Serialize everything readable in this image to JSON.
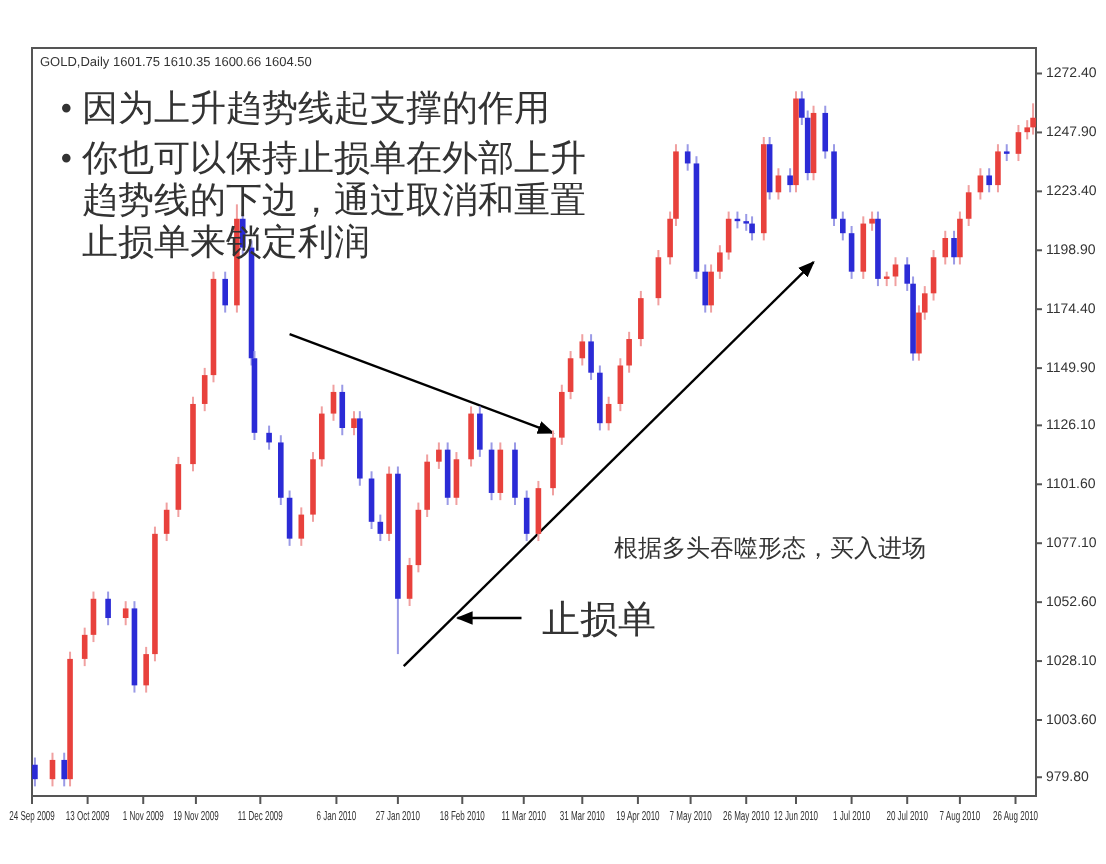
{
  "chart_data": {
    "type": "candlestick",
    "title": "GOLD,Daily  1601.75 1610.35 1600.66 1604.50",
    "x": [
      "2009-09-25",
      "2009-10-01",
      "2009-10-05",
      "2009-10-07",
      "2009-10-12",
      "2009-10-15",
      "2009-10-20",
      "2009-10-26",
      "2009-10-29",
      "2009-11-02",
      "2009-11-05",
      "2009-11-09",
      "2009-11-13",
      "2009-11-18",
      "2009-11-22",
      "2009-11-25",
      "2009-11-29",
      "2009-12-03",
      "2009-12-05",
      "2009-12-08",
      "2009-12-09",
      "2009-12-14",
      "2009-12-18",
      "2009-12-21",
      "2009-12-25",
      "2009-12-29",
      "2010-01-01",
      "2010-01-05",
      "2010-01-08",
      "2010-01-12",
      "2010-01-14",
      "2010-01-18",
      "2010-01-21",
      "2010-01-24",
      "2010-01-27",
      "2010-01-31",
      "2010-02-03",
      "2010-02-06",
      "2010-02-10",
      "2010-02-13",
      "2010-02-16",
      "2010-02-21",
      "2010-02-24",
      "2010-02-28",
      "2010-03-03",
      "2010-03-08",
      "2010-03-12",
      "2010-03-16",
      "2010-03-21",
      "2010-03-24",
      "2010-03-27",
      "2010-03-31",
      "2010-04-03",
      "2010-04-06",
      "2010-04-09",
      "2010-04-13",
      "2010-04-16",
      "2010-04-20",
      "2010-04-26",
      "2010-04-30",
      "2010-05-02",
      "2010-05-06",
      "2010-05-09",
      "2010-05-12",
      "2010-05-14",
      "2010-05-17",
      "2010-05-20",
      "2010-05-23",
      "2010-05-26",
      "2010-05-28",
      "2010-06-01",
      "2010-06-03",
      "2010-06-06",
      "2010-06-10",
      "2010-06-12",
      "2010-06-14",
      "2010-06-16",
      "2010-06-18",
      "2010-06-22",
      "2010-06-25",
      "2010-06-28",
      "2010-07-01",
      "2010-07-05",
      "2010-07-08",
      "2010-07-10",
      "2010-07-13",
      "2010-07-16",
      "2010-07-20",
      "2010-07-22",
      "2010-07-24",
      "2010-07-26",
      "2010-07-29",
      "2010-08-02",
      "2010-08-05",
      "2010-08-07",
      "2010-08-10",
      "2010-08-14",
      "2010-08-17",
      "2010-08-20",
      "2010-08-23",
      "2010-08-27",
      "2010-08-30",
      "2010-09-01"
    ],
    "ohlc": [
      [
        985,
        988,
        976,
        979
      ],
      [
        979,
        990,
        976,
        987
      ],
      [
        987,
        990,
        976,
        979
      ],
      [
        979,
        1032,
        976,
        1029
      ],
      [
        1029,
        1042,
        1026,
        1039
      ],
      [
        1039,
        1057,
        1036,
        1054
      ],
      [
        1054,
        1057,
        1043,
        1046
      ],
      [
        1046,
        1053,
        1043,
        1050
      ],
      [
        1050,
        1053,
        1015,
        1018
      ],
      [
        1018,
        1034,
        1015,
        1031
      ],
      [
        1031,
        1084,
        1028,
        1081
      ],
      [
        1081,
        1094,
        1078,
        1091
      ],
      [
        1091,
        1113,
        1088,
        1110
      ],
      [
        1110,
        1138,
        1107,
        1135
      ],
      [
        1135,
        1150,
        1132,
        1147
      ],
      [
        1147,
        1190,
        1144,
        1187
      ],
      [
        1187,
        1190,
        1173,
        1176
      ],
      [
        1176,
        1218,
        1173,
        1212
      ],
      [
        1212,
        1215,
        1197,
        1200
      ],
      [
        1200,
        1203,
        1151,
        1154
      ],
      [
        1154,
        1157,
        1120,
        1123
      ],
      [
        1123,
        1126,
        1116,
        1119
      ],
      [
        1119,
        1122,
        1093,
        1096
      ],
      [
        1096,
        1099,
        1076,
        1079
      ],
      [
        1079,
        1092,
        1076,
        1089
      ],
      [
        1089,
        1115,
        1086,
        1112
      ],
      [
        1112,
        1134,
        1109,
        1131
      ],
      [
        1131,
        1143,
        1128,
        1140
      ],
      [
        1140,
        1143,
        1122,
        1125
      ],
      [
        1125,
        1132,
        1122,
        1129
      ],
      [
        1129,
        1132,
        1101,
        1104
      ],
      [
        1104,
        1107,
        1083,
        1086
      ],
      [
        1086,
        1089,
        1078,
        1081
      ],
      [
        1081,
        1109,
        1078,
        1106
      ],
      [
        1106,
        1109,
        1031,
        1054
      ],
      [
        1054,
        1071,
        1051,
        1068
      ],
      [
        1068,
        1094,
        1065,
        1091
      ],
      [
        1091,
        1114,
        1088,
        1111
      ],
      [
        1111,
        1119,
        1108,
        1116
      ],
      [
        1116,
        1119,
        1093,
        1096
      ],
      [
        1096,
        1115,
        1093,
        1112
      ],
      [
        1112,
        1134,
        1109,
        1131
      ],
      [
        1131,
        1134,
        1113,
        1116
      ],
      [
        1116,
        1119,
        1095,
        1098
      ],
      [
        1098,
        1119,
        1095,
        1116
      ],
      [
        1116,
        1119,
        1093,
        1096
      ],
      [
        1096,
        1099,
        1078,
        1081
      ],
      [
        1081,
        1103,
        1078,
        1100
      ],
      [
        1100,
        1124,
        1097,
        1121
      ],
      [
        1121,
        1143,
        1118,
        1140
      ],
      [
        1140,
        1157,
        1137,
        1154
      ],
      [
        1154,
        1164,
        1151,
        1161
      ],
      [
        1161,
        1164,
        1145,
        1148
      ],
      [
        1148,
        1151,
        1124,
        1127
      ],
      [
        1127,
        1138,
        1124,
        1135
      ],
      [
        1135,
        1154,
        1132,
        1151
      ],
      [
        1151,
        1165,
        1148,
        1162
      ],
      [
        1162,
        1182,
        1159,
        1179
      ],
      [
        1179,
        1199,
        1176,
        1196
      ],
      [
        1196,
        1215,
        1193,
        1212
      ],
      [
        1212,
        1243,
        1209,
        1240
      ],
      [
        1240,
        1243,
        1232,
        1235
      ],
      [
        1235,
        1238,
        1187,
        1190
      ],
      [
        1190,
        1193,
        1173,
        1176
      ],
      [
        1176,
        1193,
        1173,
        1190
      ],
      [
        1190,
        1201,
        1187,
        1198
      ],
      [
        1198,
        1215,
        1195,
        1212
      ],
      [
        1212,
        1215,
        1208,
        1211
      ],
      [
        1211,
        1214,
        1207,
        1210
      ],
      [
        1210,
        1213,
        1203,
        1206
      ],
      [
        1206,
        1246,
        1203,
        1243
      ],
      [
        1243,
        1246,
        1220,
        1223
      ],
      [
        1223,
        1233,
        1220,
        1230
      ],
      [
        1230,
        1233,
        1223,
        1226
      ],
      [
        1226,
        1265,
        1223,
        1262
      ],
      [
        1262,
        1265,
        1251,
        1254
      ],
      [
        1254,
        1257,
        1228,
        1231
      ],
      [
        1231,
        1259,
        1228,
        1256
      ],
      [
        1256,
        1259,
        1237,
        1240
      ],
      [
        1240,
        1243,
        1209,
        1212
      ],
      [
        1212,
        1215,
        1203,
        1206
      ],
      [
        1206,
        1209,
        1187,
        1190
      ],
      [
        1190,
        1213,
        1187,
        1210
      ],
      [
        1210,
        1215,
        1207,
        1212
      ],
      [
        1212,
        1215,
        1184,
        1187
      ],
      [
        1187,
        1190,
        1184,
        1188
      ],
      [
        1188,
        1196,
        1184,
        1193
      ],
      [
        1193,
        1196,
        1182,
        1185
      ],
      [
        1185,
        1188,
        1153,
        1156
      ],
      [
        1156,
        1176,
        1153,
        1173
      ],
      [
        1173,
        1184,
        1170,
        1181
      ],
      [
        1181,
        1199,
        1178,
        1196
      ],
      [
        1196,
        1207,
        1193,
        1204
      ],
      [
        1204,
        1207,
        1193,
        1196
      ],
      [
        1196,
        1215,
        1193,
        1212
      ],
      [
        1212,
        1226,
        1209,
        1223
      ],
      [
        1223,
        1233,
        1220,
        1230
      ],
      [
        1230,
        1233,
        1223,
        1226
      ],
      [
        1226,
        1243,
        1223,
        1240
      ],
      [
        1240,
        1243,
        1236,
        1239
      ],
      [
        1239,
        1251,
        1236,
        1248
      ],
      [
        1248,
        1253,
        1245,
        1250
      ],
      [
        1250,
        1260,
        1247,
        1254
      ]
    ],
    "series": [
      {
        "type": "line",
        "x": [
          "2009-12-21",
          "2010-03-21"
        ],
        "values": [
          1164,
          1123
        ],
        "color": "#000000"
      },
      {
        "type": "line",
        "x": [
          "2010-01-29",
          "2010-06-18"
        ],
        "values": [
          1026,
          1194
        ],
        "color": "#000000"
      }
    ],
    "annotations": [
      "• 因为上升趋势线起支撑的作用",
      "• 你也可以保持止损单在外部上升趋势线的下边，通过取消和重置止损单来锁定利润",
      "根据多头吞噬形态，买入进场",
      {
        "text": "止损单",
        "x": "2010-02-15",
        "y": 1046
      }
    ],
    "xlim": [
      "2009-09-24",
      "2010-09-02"
    ],
    "xticks": [
      {
        "value": "2009-09-24",
        "label": "24 Sep 2009"
      },
      {
        "value": "2009-10-13",
        "label": "13 Oct 2009"
      },
      {
        "value": "2009-11-01",
        "label": "1 Nov 2009"
      },
      {
        "value": "2009-11-19",
        "label": "19 Nov 2009"
      },
      {
        "value": "2009-12-11",
        "label": "11 Dec 2009"
      },
      {
        "value": "2010-01-06",
        "label": "6 Jan 2010"
      },
      {
        "value": "2010-01-27",
        "label": "27 Jan 2010"
      },
      {
        "value": "2010-02-18",
        "label": "18 Feb 2010"
      },
      {
        "value": "2010-03-11",
        "label": "11 Mar 2010"
      },
      {
        "value": "2010-03-31",
        "label": "31 Mar 2010"
      },
      {
        "value": "2010-04-19",
        "label": "19 Apr 2010"
      },
      {
        "value": "2010-05-07",
        "label": "7 May 2010"
      },
      {
        "value": "2010-05-26",
        "label": "26 May 2010"
      },
      {
        "value": "2010-06-12",
        "label": "12 Jun 2010"
      },
      {
        "value": "2010-07-01",
        "label": "1 Jul 2010"
      },
      {
        "value": "2010-07-20",
        "label": "20 Jul 2010"
      },
      {
        "value": "2010-08-07",
        "label": "7 Aug 2010"
      },
      {
        "value": "2010-08-26",
        "label": "26 Aug 2010"
      }
    ],
    "ylim": [
      972,
      1283
    ],
    "yticks": [
      {
        "value": 979.8,
        "label": "979.80"
      },
      {
        "value": 1003.6,
        "label": "1003.60"
      },
      {
        "value": 1028.1,
        "label": "1028.10"
      },
      {
        "value": 1052.6,
        "label": "1052.60"
      },
      {
        "value": 1077.1,
        "label": "1077.10"
      },
      {
        "value": 1101.6,
        "label": "1101.60"
      },
      {
        "value": 1126.1,
        "label": "1126.10"
      },
      {
        "value": 1149.9,
        "label": "1149.90"
      },
      {
        "value": 1174.4,
        "label": "1174.40"
      },
      {
        "value": 1198.9,
        "label": "1198.90"
      },
      {
        "value": 1223.4,
        "label": "1223.40"
      },
      {
        "value": 1247.9,
        "label": "1247.90"
      },
      {
        "value": 1272.4,
        "label": "1272.40"
      }
    ]
  }
}
